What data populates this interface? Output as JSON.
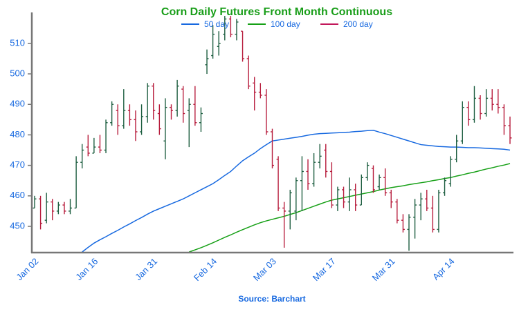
{
  "chart_data": {
    "type": "ohlc",
    "title": "Corn Daily Futures Front Month Continuous",
    "source": "Source: Barchart",
    "categories": [
      "Jan 02",
      null,
      null,
      null,
      null,
      null,
      null,
      null,
      null,
      null,
      "Jan 16",
      null,
      null,
      null,
      null,
      null,
      null,
      null,
      null,
      null,
      "Jan 31",
      null,
      null,
      null,
      null,
      null,
      null,
      null,
      null,
      null,
      "Feb 14",
      null,
      null,
      null,
      null,
      null,
      null,
      null,
      null,
      null,
      "Mar 03",
      null,
      null,
      null,
      null,
      null,
      null,
      null,
      null,
      null,
      "Mar 17",
      null,
      null,
      null,
      null,
      null,
      null,
      null,
      null,
      null,
      "Mar 31",
      null,
      null,
      null,
      null,
      null,
      null,
      null,
      null,
      null,
      "Apr 14",
      null,
      null,
      null,
      null,
      null,
      null,
      null,
      null,
      null,
      null
    ],
    "open": [
      456,
      459,
      452,
      458,
      455,
      457,
      455,
      456,
      471,
      476,
      474,
      476,
      475,
      484,
      488,
      483,
      488,
      485,
      481,
      486,
      496,
      487,
      478,
      489,
      488,
      495,
      488,
      490,
      484,
      503,
      506,
      509,
      513,
      518,
      513,
      514,
      505,
      497,
      494,
      493,
      481,
      472,
      456,
      455,
      455,
      465,
      468,
      464,
      471,
      475,
      468,
      457,
      462,
      458,
      462,
      457,
      466,
      469,
      463,
      466,
      461,
      458,
      452,
      449,
      453,
      457,
      459,
      456,
      449,
      461,
      464,
      472,
      478,
      489,
      485,
      492,
      487,
      492,
      490,
      489,
      483
    ],
    "high": [
      460,
      460,
      461,
      459,
      458,
      458,
      459,
      473,
      477,
      480,
      479,
      480,
      485,
      491,
      490,
      495,
      490,
      488,
      490,
      497,
      497,
      490,
      492,
      490,
      498,
      496,
      492,
      496,
      489,
      508,
      516,
      514,
      519,
      519,
      518,
      514,
      506,
      499,
      497,
      495,
      482,
      473,
      458,
      462,
      466,
      473,
      472,
      474,
      477,
      477,
      471,
      463,
      463,
      466,
      464,
      467,
      471,
      470,
      467,
      469,
      462,
      459,
      454,
      454,
      459,
      461,
      462,
      460,
      462,
      466,
      473,
      480,
      491,
      491,
      496,
      493,
      495,
      495,
      495,
      490,
      486
    ],
    "low": [
      456,
      449,
      451,
      452,
      454,
      454,
      454,
      456,
      469,
      473,
      474,
      474,
      474,
      483,
      480,
      482,
      483,
      478,
      480,
      484,
      485,
      480,
      472,
      485,
      486,
      484,
      476,
      483,
      481,
      500,
      505,
      506,
      511,
      512,
      511,
      504,
      495,
      488,
      492,
      480,
      469,
      455,
      443,
      449,
      452,
      455,
      462,
      463,
      469,
      466,
      456,
      455,
      456,
      455,
      455,
      457,
      465,
      461,
      462,
      460,
      456,
      451,
      448,
      442,
      446,
      452,
      455,
      448,
      448,
      460,
      463,
      471,
      477,
      483,
      484,
      485,
      486,
      488,
      487,
      480,
      477
    ],
    "close": [
      459,
      451,
      458,
      455,
      457,
      455,
      456,
      471,
      475,
      474,
      476,
      475,
      484,
      490,
      483,
      488,
      485,
      481,
      486,
      496,
      488,
      482,
      489,
      488,
      496,
      487,
      490,
      484,
      487,
      505,
      513,
      510,
      518,
      513,
      517,
      505,
      496,
      494,
      493,
      481,
      470,
      456,
      455,
      461,
      465,
      468,
      464,
      471,
      473,
      468,
      457,
      462,
      458,
      462,
      457,
      466,
      470,
      462,
      466,
      461,
      458,
      452,
      449,
      453,
      457,
      459,
      456,
      449,
      461,
      465,
      472,
      478,
      489,
      485,
      492,
      487,
      492,
      490,
      489,
      483,
      479
    ],
    "up_color": "#1d5e40",
    "down_color": "#b71c3c",
    "series": [
      {
        "name": "50 day",
        "color": "#1769e0",
        "values": [
          null,
          null,
          null,
          null,
          null,
          null,
          null,
          null,
          441.6,
          443.1,
          444.5,
          445.6,
          446.6,
          447.7,
          448.7,
          449.8,
          450.8,
          451.9,
          452.9,
          454,
          455,
          455.8,
          456.6,
          457.4,
          458.2,
          459,
          460,
          461,
          462,
          463,
          464,
          465.3,
          466.7,
          468,
          469.8,
          471.5,
          472.8,
          474,
          475.5,
          476.8,
          478,
          478.3,
          478.6,
          478.9,
          479.2,
          479.5,
          479.9,
          480.2,
          480.4,
          480.5,
          480.6,
          480.7,
          480.8,
          480.9,
          481.1,
          481.2,
          481.4,
          481.5,
          480.9,
          480.4,
          479.8,
          479.2,
          478.6,
          478,
          477.4,
          476.8,
          476.6,
          476.4,
          476.2,
          476.1,
          476,
          476,
          475.9,
          475.8,
          475.8,
          475.7,
          475.6,
          475.5,
          475.4,
          475.3,
          475
        ]
      },
      {
        "name": "100 day",
        "color": "#16a016",
        "values": [
          null,
          null,
          null,
          null,
          null,
          null,
          null,
          null,
          null,
          null,
          null,
          null,
          null,
          null,
          null,
          null,
          null,
          null,
          null,
          null,
          null,
          null,
          null,
          null,
          null,
          null,
          441.6,
          442.3,
          443,
          443.8,
          444.6,
          445.5,
          446.4,
          447.2,
          448.1,
          448.9,
          449.7,
          450.5,
          451.2,
          451.8,
          452.3,
          452.8,
          453.3,
          453.9,
          454.5,
          455.2,
          455.9,
          456.6,
          457.3,
          458,
          458.6,
          459,
          459.4,
          459.8,
          460.2,
          460.6,
          461,
          461.4,
          461.9,
          462.3,
          462.7,
          463,
          463.3,
          463.7,
          464,
          464.3,
          464.6,
          465,
          465.3,
          465.7,
          466,
          466.5,
          466.9,
          467.4,
          467.8,
          468.3,
          468.8,
          469.2,
          469.7,
          470.1,
          470.6
        ]
      },
      {
        "name": "200 day",
        "color": "#c2185b"
      }
    ],
    "ylim": [
      441.4,
      519.7
    ],
    "yticks": [
      450,
      460,
      470,
      480,
      490,
      500,
      510
    ]
  }
}
